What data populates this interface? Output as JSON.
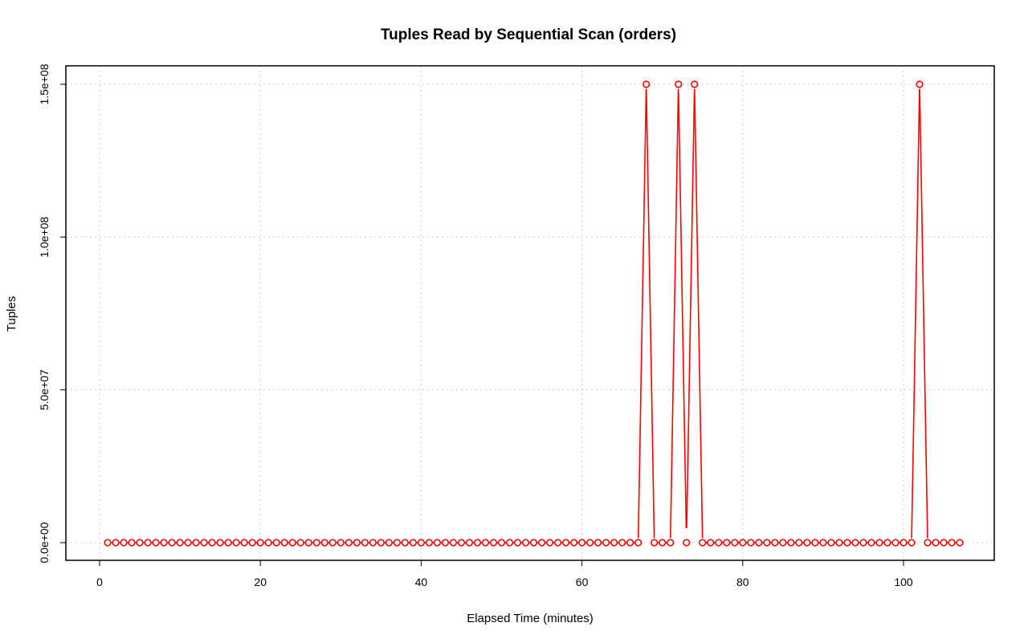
{
  "chart_data": {
    "type": "line",
    "title": "Tuples Read by Sequential Scan (orders)",
    "xlabel": "Elapsed Time (minutes)",
    "ylabel": "Tuples",
    "xlim": [
      0,
      110
    ],
    "ylim": [
      0,
      150000000
    ],
    "xticks": [
      0,
      20,
      40,
      60,
      80,
      100
    ],
    "xtick_labels": [
      "0",
      "20",
      "40",
      "60",
      "80",
      "100"
    ],
    "yticks": [
      0,
      50000000,
      100000000,
      150000000
    ],
    "ytick_labels": [
      "0.0e+00",
      "5.0e+07",
      "1.0e+08",
      "1.5e+08"
    ],
    "grid": true,
    "colors": {
      "series": "#ff0000",
      "grid": "#c8c8c8"
    },
    "series": [
      {
        "x": [
          1,
          2,
          3,
          4,
          5,
          6,
          7,
          8,
          9,
          10,
          11,
          12,
          13,
          14,
          15,
          16,
          17,
          18,
          19,
          20,
          21,
          22,
          23,
          24,
          25,
          26,
          27,
          28,
          29,
          30,
          31,
          32,
          33,
          34,
          35,
          36,
          37,
          38,
          39,
          40,
          41,
          42,
          43,
          44,
          45,
          46,
          47,
          48,
          49,
          50,
          51,
          52,
          53,
          54,
          55,
          56,
          57,
          58,
          59,
          60,
          61,
          62,
          63,
          64,
          65,
          66,
          67,
          68,
          69,
          70,
          71,
          72,
          73,
          74,
          75,
          76,
          77,
          78,
          79,
          80,
          81,
          82,
          83,
          84,
          85,
          86,
          87,
          88,
          89,
          90,
          91,
          92,
          93,
          94,
          95,
          96,
          97,
          98,
          99,
          100,
          101,
          102,
          103,
          104,
          105,
          106,
          107
        ],
        "y": [
          0,
          0,
          0,
          0,
          0,
          0,
          0,
          0,
          0,
          0,
          0,
          0,
          0,
          0,
          0,
          0,
          0,
          0,
          0,
          0,
          0,
          0,
          0,
          0,
          0,
          0,
          0,
          0,
          0,
          0,
          0,
          0,
          0,
          0,
          0,
          0,
          0,
          0,
          0,
          0,
          0,
          0,
          0,
          0,
          0,
          0,
          0,
          0,
          0,
          0,
          0,
          0,
          0,
          0,
          0,
          0,
          0,
          0,
          0,
          0,
          0,
          0,
          0,
          0,
          0,
          0,
          0,
          150000000,
          0,
          0,
          0,
          150000000,
          0,
          150000000,
          0,
          0,
          0,
          0,
          0,
          0,
          0,
          0,
          0,
          0,
          0,
          0,
          0,
          0,
          0,
          0,
          0,
          0,
          0,
          0,
          0,
          0,
          0,
          0,
          0,
          0,
          0,
          150000000,
          0,
          0,
          0,
          0,
          0
        ],
        "line_gaps": [
          [
            72,
            73
          ],
          [
            73,
            74
          ]
        ]
      }
    ]
  }
}
